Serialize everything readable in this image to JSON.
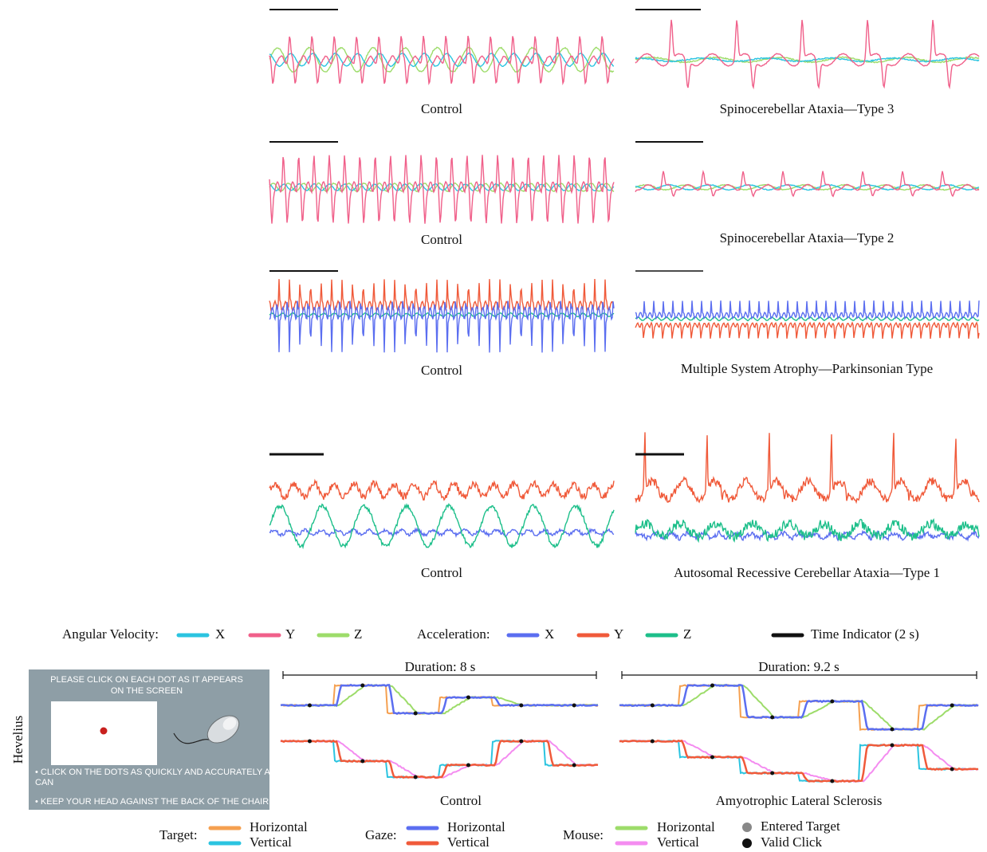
{
  "figure_panels": [
    {
      "label": "Control"
    },
    {
      "label": "Spinocerebellar Ataxia—Type 3"
    },
    {
      "label": "Control"
    },
    {
      "label": "Spinocerebellar Ataxia—Type 2"
    },
    {
      "label": "Control"
    },
    {
      "label": "Multiple System Atrophy—Parkinsonian Type"
    },
    {
      "label": "Control"
    },
    {
      "label": "Autosomal Recessive Cerebellar Ataxia—Type 1"
    }
  ],
  "legend_top": {
    "angular_velocity": {
      "title": "Angular Velocity:",
      "items": [
        "X",
        "Y",
        "Z"
      ]
    },
    "acceleration": {
      "title": "Acceleration:",
      "items": [
        "X",
        "Y",
        "Z"
      ]
    },
    "time_indicator": "Time Indicator (2 s)"
  },
  "hevelius": {
    "side_label": "Hevelius",
    "instruction": [
      "PLEASE CLICK ON EACH DOT AS IT APPEARS",
      "ON THE SCREEN"
    ],
    "bullets": [
      [
        "• CLICK ON THE DOTS AS QUICKLY AND ACCURATELY AS YOU",
        "CAN"
      ],
      [
        "• KEEP YOUR HEAD AGAINST THE BACK OF THE CHAIR"
      ]
    ]
  },
  "task_panels": [
    {
      "duration": "Duration: 8 s",
      "label": "Control"
    },
    {
      "duration": "Duration: 9.2 s",
      "label": "Amyotrophic Lateral Sclerosis"
    }
  ],
  "legend_bottom": {
    "target": {
      "title": "Target:",
      "items": [
        "Horizontal",
        "Vertical"
      ]
    },
    "gaze": {
      "title": "Gaze:",
      "items": [
        "Horizontal",
        "Vertical"
      ]
    },
    "mouse": {
      "title": "Mouse:",
      "items": [
        "Horizontal",
        "Vertical"
      ]
    },
    "markers": [
      "Entered Target",
      "Valid Click"
    ]
  }
}
